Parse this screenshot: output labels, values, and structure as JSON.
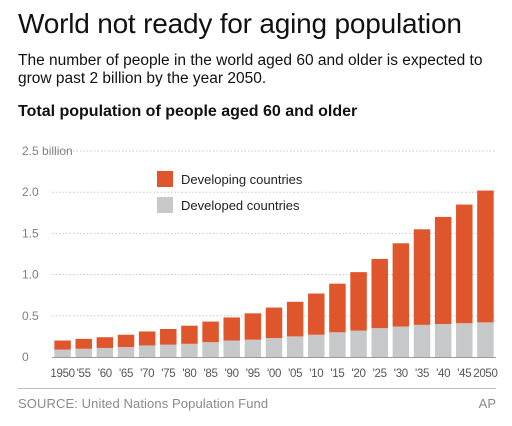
{
  "header": {
    "title": "World not ready for aging population",
    "subtitle": "The number of people in the world aged 60 and older is expected to grow past 2 billion by the year 2050."
  },
  "chart_title": "Total population of people aged 60 and older",
  "footer": {
    "source": "SOURCE: United Nations Population Fund",
    "credit": "AP"
  },
  "colors": {
    "developing": "#e0562c",
    "developed": "#c7c8ca",
    "grid": "#c8c8c8",
    "axis_text": "#808080"
  },
  "chart_data": {
    "type": "bar",
    "stacked": true,
    "categories": [
      "1950",
      "'55",
      "'60",
      "'65",
      "'70",
      "'75",
      "'80",
      "'85",
      "'90",
      "'95",
      "'00",
      "'05",
      "'10",
      "'15",
      "'20",
      "'25",
      "'30",
      "'35",
      "'40",
      "'45",
      "2050"
    ],
    "series": [
      {
        "name": "Developed countries",
        "values": [
          0.09,
          0.1,
          0.11,
          0.12,
          0.14,
          0.15,
          0.16,
          0.18,
          0.2,
          0.21,
          0.23,
          0.25,
          0.27,
          0.3,
          0.32,
          0.35,
          0.37,
          0.39,
          0.4,
          0.41,
          0.42
        ]
      },
      {
        "name": "Developing countries",
        "values": [
          0.11,
          0.12,
          0.13,
          0.15,
          0.17,
          0.19,
          0.22,
          0.25,
          0.28,
          0.32,
          0.37,
          0.42,
          0.5,
          0.59,
          0.71,
          0.84,
          1.01,
          1.16,
          1.3,
          1.44,
          1.6
        ]
      }
    ],
    "yticks": [
      0,
      0.5,
      1.0,
      1.5,
      2.0,
      2.5
    ],
    "ytick_labels": [
      "0",
      "0.5",
      "1.0",
      "1.5",
      "2.0",
      "2.5 billion"
    ],
    "ylim": [
      0,
      2.5
    ],
    "legend": [
      {
        "label": "Developing countries",
        "color": "#e0562c"
      },
      {
        "label": "Developed countries",
        "color": "#c7c8ca"
      }
    ],
    "legend_position": "top-left",
    "grid": true,
    "xlabel": "",
    "ylabel": ""
  }
}
